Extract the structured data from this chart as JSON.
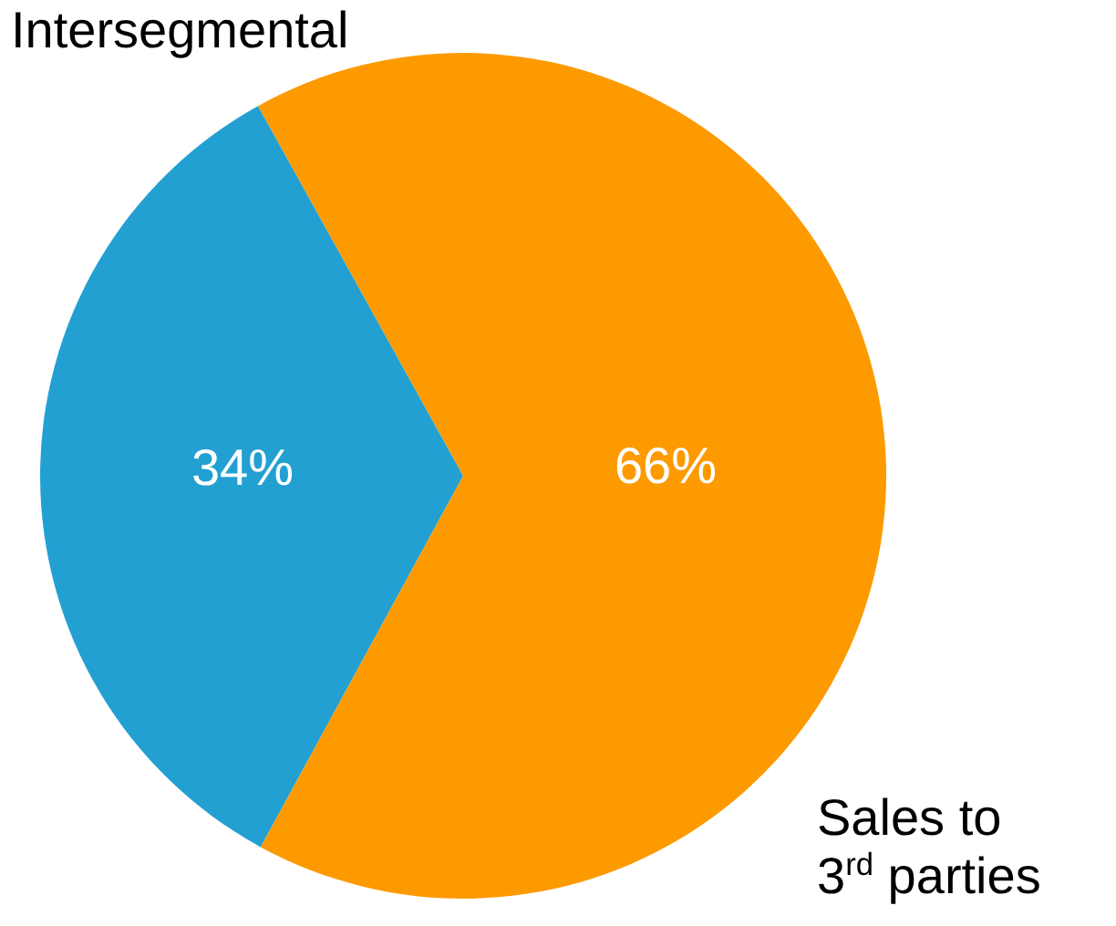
{
  "chart_data": {
    "type": "pie",
    "categories": [
      "Intersegmental",
      "Sales to 3$^{rd}$ parties"
    ],
    "values": [
      34,
      66
    ],
    "colors": [
      "#23a0d2",
      "#fd9a00"
    ],
    "value_labels": [
      "34%",
      "66%"
    ]
  }
}
